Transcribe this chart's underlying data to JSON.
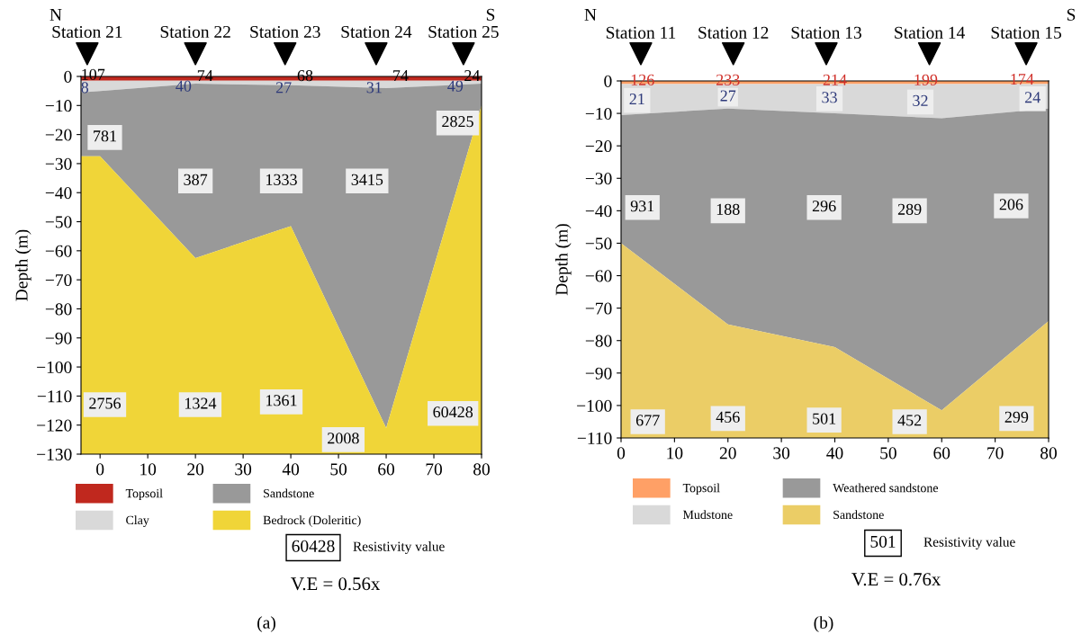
{
  "chart_data": [
    {
      "type": "area",
      "stacked": true,
      "ylabel": "Depth (m)",
      "x": [
        -4,
        0,
        20,
        40,
        60,
        80
      ],
      "xlim": [
        -4,
        80
      ],
      "ylim": [
        -130,
        0
      ],
      "xticks": [
        0,
        10,
        20,
        30,
        40,
        50,
        60,
        70,
        80
      ],
      "yticks": [
        0,
        -10,
        -20,
        -30,
        -40,
        -50,
        -60,
        -70,
        -80,
        -90,
        -100,
        -110,
        -120,
        -130
      ],
      "grid": false,
      "legend": "bottom",
      "series": [
        {
          "name": "Topsoil",
          "color": "#c0281e",
          "values": [
            -1.5,
            -1.5,
            -1.5,
            -1.5,
            -1.5,
            -1.5
          ]
        },
        {
          "name": "Clay",
          "color": "#d9d9d9",
          "values": [
            -4,
            -3.5,
            -1,
            -1.5,
            -2.5,
            -1
          ]
        },
        {
          "name": "Sandstone",
          "color": "#999999",
          "values": [
            -22,
            -22.5,
            -60,
            -48.5,
            -117,
            -7.5
          ]
        },
        {
          "name": "Bedrock (Doleritic)",
          "color": "#f0d538",
          "values": [
            -102.5,
            -102.5,
            -67.5,
            -78.5,
            -9,
            -120
          ]
        }
      ],
      "annotations": [
        "Station 21",
        "Station 22",
        "Station 23",
        "Station 24",
        "Station 25",
        "107",
        "74",
        "68",
        "74",
        "24",
        "8",
        "40",
        "27",
        "31",
        "49",
        "781",
        "387",
        "1333",
        "3415",
        "2825",
        "2756",
        "1324",
        "1361",
        "2008",
        "60428",
        "N",
        "S",
        "60428",
        "Resistivity value",
        "V.E = 0.56x",
        "(a)"
      ]
    },
    {
      "type": "area",
      "stacked": true,
      "ylabel": "Depth (m)",
      "x": [
        0,
        20,
        40,
        60,
        80
      ],
      "xlim": [
        0,
        80
      ],
      "ylim": [
        -110,
        0
      ],
      "xticks": [
        0,
        10,
        20,
        30,
        40,
        50,
        60,
        70,
        80
      ],
      "yticks": [
        0,
        -10,
        -20,
        -30,
        -40,
        -50,
        -60,
        -70,
        -80,
        -90,
        -100,
        -110
      ],
      "grid": false,
      "legend": "bottom",
      "series": [
        {
          "name": "Topsoil",
          "color": "#ffa066",
          "values": [
            -1,
            -1,
            -1,
            -1,
            -1
          ]
        },
        {
          "name": "Mudstone",
          "color": "#d9d9d9",
          "values": [
            -9.5,
            -7.5,
            -9,
            -10.5,
            -7.5
          ]
        },
        {
          "name": "Weathered sandstone",
          "color": "#999999",
          "values": [
            -39.5,
            -66.5,
            -72,
            -90,
            -65.5
          ]
        },
        {
          "name": "Sandstone",
          "color": "#ebcd66",
          "values": [
            -60,
            -35,
            -28,
            -8.5,
            -36
          ]
        }
      ],
      "annotations": [
        "Station 11",
        "Station 12",
        "Station 13",
        "Station 14",
        "Station 15",
        "126",
        "233",
        "214",
        "199",
        "174",
        "21",
        "27",
        "33",
        "32",
        "24",
        "931",
        "188",
        "296",
        "289",
        "206",
        "677",
        "456",
        "501",
        "452",
        "299",
        "N",
        "S",
        "501",
        "Resistivity value",
        "V.E = 0.76x",
        "(b)"
      ]
    }
  ]
}
